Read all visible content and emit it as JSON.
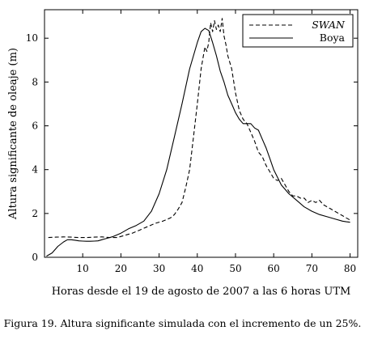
{
  "chart_data": {
    "type": "line",
    "title": "",
    "xlabel": "Horas desde el 19 de agosto de 2007 a las 6 horas UTM",
    "ylabel": "Altura significante de oleaje (m)",
    "xlim": [
      0,
      82
    ],
    "ylim": [
      0,
      11.3
    ],
    "xticks": [
      10,
      20,
      30,
      40,
      50,
      60,
      70,
      80
    ],
    "yticks": [
      0,
      2,
      4,
      6,
      8,
      10
    ],
    "grid": false,
    "legend_position": "top-right",
    "series": [
      {
        "name": "SWAN",
        "style": "dashed",
        "color": "#000000",
        "x": [
          1,
          3,
          5,
          7,
          9,
          11,
          13,
          15,
          17,
          19,
          21,
          23,
          25,
          27,
          29,
          31,
          33,
          34,
          35,
          36,
          37,
          38,
          39,
          40,
          41,
          42,
          42.5,
          43,
          43.5,
          44,
          44.5,
          45,
          45.5,
          46,
          46.5,
          47,
          47.5,
          48,
          49,
          50,
          51,
          52,
          53,
          54,
          55,
          56,
          57,
          58,
          59,
          60,
          61,
          62,
          63,
          64,
          65,
          66,
          67,
          68,
          69,
          70,
          71,
          72,
          73,
          74,
          75,
          76,
          77,
          78,
          79,
          80
        ],
        "y": [
          0.9,
          0.92,
          0.93,
          0.92,
          0.9,
          0.9,
          0.92,
          0.93,
          0.9,
          0.9,
          1.0,
          1.1,
          1.25,
          1.4,
          1.55,
          1.65,
          1.8,
          1.95,
          2.2,
          2.5,
          3.2,
          4.0,
          5.5,
          7.0,
          8.6,
          9.6,
          9.4,
          9.8,
          10.7,
          10.3,
          10.8,
          10.4,
          10.6,
          10.3,
          10.9,
          10.1,
          9.7,
          9.2,
          8.6,
          7.5,
          6.7,
          6.3,
          6.1,
          5.7,
          5.3,
          4.8,
          4.6,
          4.2,
          3.9,
          3.6,
          3.5,
          3.6,
          3.3,
          3.0,
          2.8,
          2.8,
          2.7,
          2.7,
          2.5,
          2.6,
          2.5,
          2.6,
          2.4,
          2.3,
          2.2,
          2.1,
          2.0,
          1.9,
          1.8,
          1.7
        ]
      },
      {
        "name": "Boya",
        "style": "solid",
        "color": "#000000",
        "x": [
          0.5,
          2,
          3.5,
          5,
          6,
          7,
          8,
          9,
          10,
          11,
          12,
          13,
          14,
          15,
          16,
          18,
          20,
          22,
          24,
          26,
          28,
          30,
          32,
          34,
          36,
          38,
          40,
          41,
          42,
          43,
          44,
          45,
          46,
          47,
          48,
          49,
          50,
          51,
          52,
          53,
          54,
          55,
          56,
          57,
          58,
          59,
          60,
          62,
          64,
          66,
          68,
          70,
          72,
          74,
          76,
          78,
          79,
          80
        ],
        "y": [
          0.05,
          0.2,
          0.5,
          0.7,
          0.8,
          0.8,
          0.78,
          0.75,
          0.74,
          0.73,
          0.73,
          0.74,
          0.75,
          0.8,
          0.85,
          0.95,
          1.1,
          1.3,
          1.45,
          1.65,
          2.1,
          2.9,
          4.0,
          5.5,
          7.0,
          8.6,
          9.8,
          10.3,
          10.45,
          10.35,
          9.8,
          9.2,
          8.5,
          8.0,
          7.4,
          7.0,
          6.6,
          6.3,
          6.1,
          6.1,
          6.1,
          5.9,
          5.8,
          5.4,
          5.0,
          4.5,
          4.0,
          3.3,
          2.9,
          2.6,
          2.3,
          2.1,
          1.95,
          1.85,
          1.75,
          1.65,
          1.62,
          1.6
        ]
      }
    ]
  },
  "caption": "Figura 19. Altura significante simulada con el incremento de un 25%."
}
